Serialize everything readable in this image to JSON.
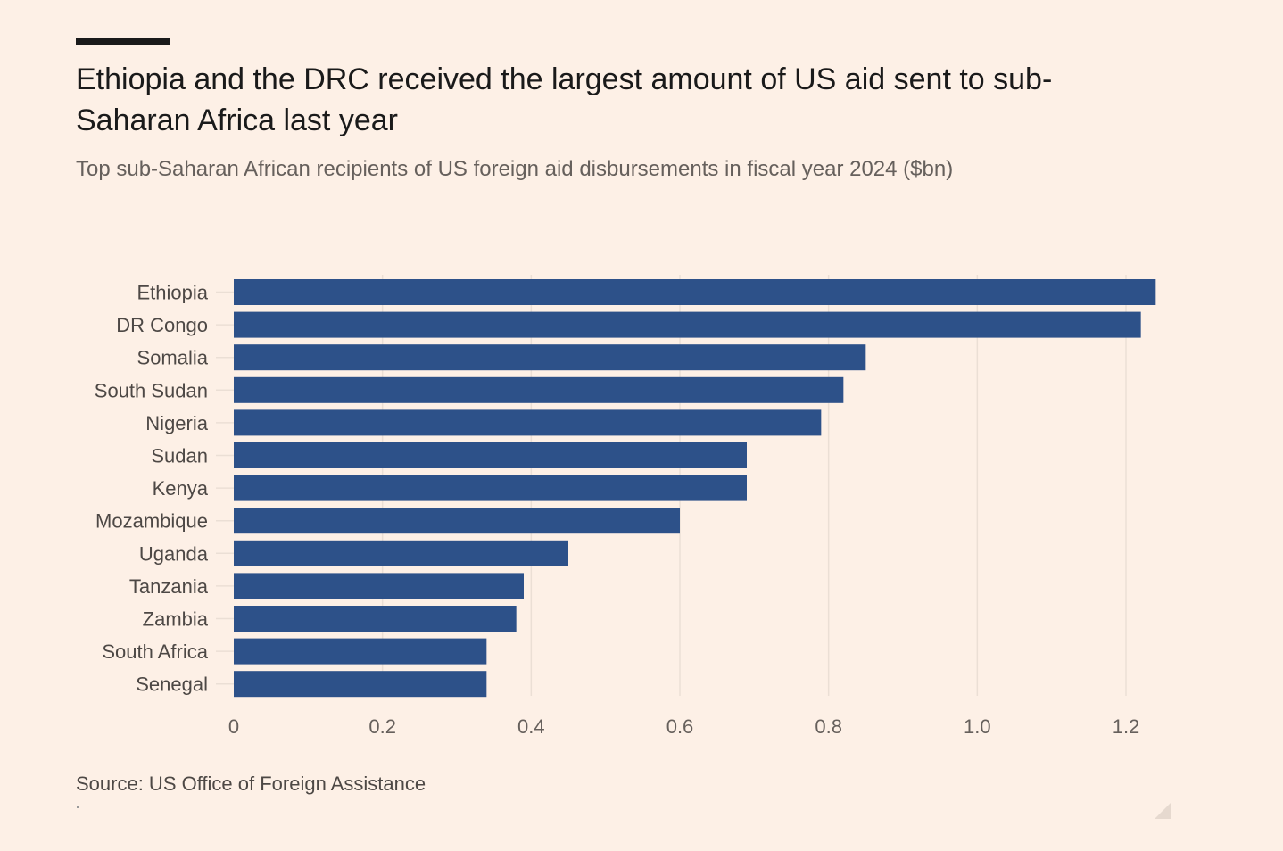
{
  "header": {
    "title": "Ethiopia and the DRC received the largest amount of US aid sent to sub-Saharan Africa last year",
    "subtitle": "Top sub-Saharan African recipients of US foreign aid disbursements in fiscal year 2024 ($bn)"
  },
  "footer": {
    "source": "Source: US Office of Foreign Assistance"
  },
  "chart_data": {
    "type": "bar",
    "orientation": "horizontal",
    "title": "Ethiopia and the DRC received the largest amount of US aid sent to sub-Saharan Africa last year",
    "subtitle": "Top sub-Saharan African recipients of US foreign aid disbursements in fiscal year 2024 ($bn)",
    "categories": [
      "Ethiopia",
      "DR Congo",
      "Somalia",
      "South Sudan",
      "Nigeria",
      "Sudan",
      "Kenya",
      "Mozambique",
      "Uganda",
      "Tanzania",
      "Zambia",
      "South Africa",
      "Senegal"
    ],
    "values": [
      1.24,
      1.22,
      0.85,
      0.82,
      0.79,
      0.69,
      0.69,
      0.6,
      0.45,
      0.39,
      0.38,
      0.34,
      0.34
    ],
    "xlim": [
      0,
      1.3
    ],
    "xticks": [
      0,
      0.2,
      0.4,
      0.6,
      0.8,
      1.0,
      1.2
    ],
    "xtick_labels": [
      "0",
      "0.2",
      "0.4",
      "0.6",
      "0.8",
      "1.0",
      "1.2"
    ],
    "xlabel": "",
    "ylabel": "",
    "grid": "vertical",
    "bar_color": "#2d5189",
    "grid_color": "#ebdfd5"
  }
}
